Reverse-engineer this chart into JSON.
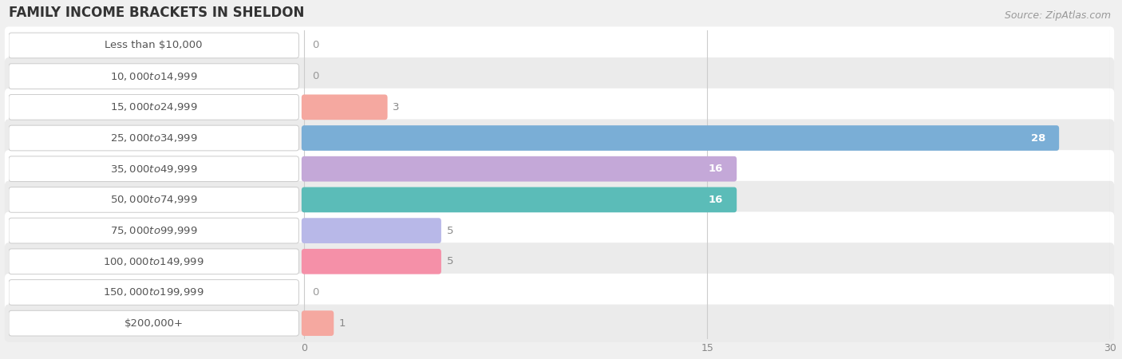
{
  "title": "FAMILY INCOME BRACKETS IN SHELDON",
  "source": "Source: ZipAtlas.com",
  "categories": [
    "Less than $10,000",
    "$10,000 to $14,999",
    "$15,000 to $24,999",
    "$25,000 to $34,999",
    "$35,000 to $49,999",
    "$50,000 to $74,999",
    "$75,000 to $99,999",
    "$100,000 to $149,999",
    "$150,000 to $199,999",
    "$200,000+"
  ],
  "values": [
    0,
    0,
    3,
    28,
    16,
    16,
    5,
    5,
    0,
    1
  ],
  "bar_colors": [
    "#f5a8b8",
    "#f5c89a",
    "#f5a8a0",
    "#7aaed6",
    "#c4a8d8",
    "#5bbcb8",
    "#b8b8e8",
    "#f590a8",
    "#f5c89a",
    "#f5a8a0"
  ],
  "xlim": [
    0,
    30
  ],
  "xticks": [
    0,
    15,
    30
  ],
  "bg_color": "#f0f0f0",
  "row_bg_even": "#ffffff",
  "row_bg_odd": "#ebebeb",
  "title_fontsize": 12,
  "source_fontsize": 9,
  "label_fontsize": 9.5,
  "value_fontsize": 9.5
}
